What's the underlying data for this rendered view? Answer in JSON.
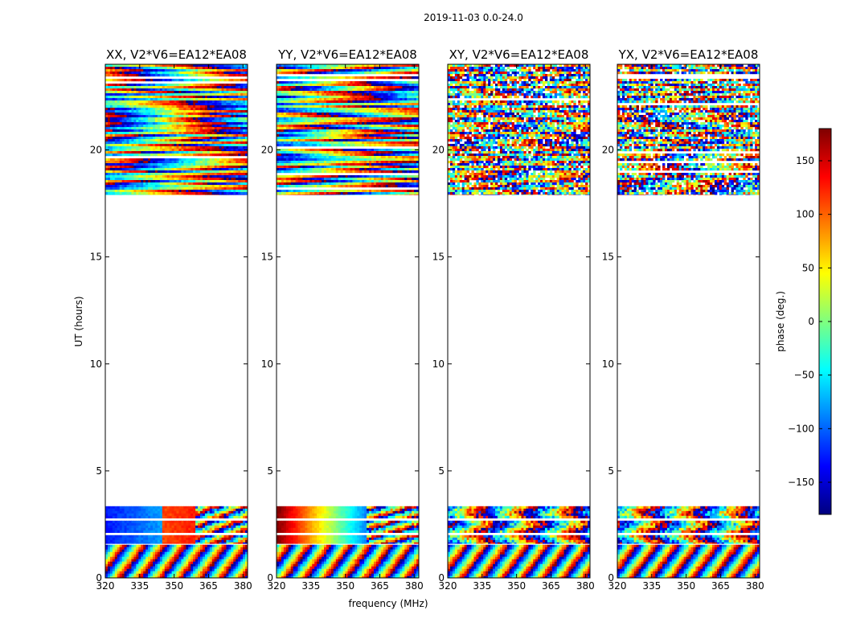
{
  "figure_title": "2019-11-03 0.0-24.0",
  "chart_data": {
    "type": "heatmap",
    "title": "2019-11-03 0.0-24.0",
    "xlabel": "frequency (MHz)",
    "ylabel": "UT (hours)",
    "xlim": [
      320,
      382
    ],
    "ylim": [
      0,
      24
    ],
    "x_ticks": [
      320,
      335,
      350,
      365,
      380
    ],
    "y_ticks": [
      0,
      5,
      10,
      15,
      20
    ],
    "colorbar": {
      "label": "phase (deg.)",
      "range": [
        -180,
        180
      ],
      "ticks": [
        150,
        100,
        50,
        0,
        -50,
        -100,
        -150
      ],
      "tick_labels": [
        "150",
        "100",
        "50",
        "0",
        "−50",
        "−100",
        "−150"
      ],
      "colormap": "jet",
      "colors": [
        "#00007f",
        "#0000ff",
        "#007fff",
        "#00ffff",
        "#7fff7f",
        "#ffff00",
        "#ff7f00",
        "#ff0000",
        "#7f0000"
      ]
    },
    "data_time_ranges_hours": [
      [
        0.0,
        1.55
      ],
      [
        1.6,
        3.35
      ],
      [
        17.9,
        24.0
      ]
    ],
    "panels": [
      {
        "title": "XX, V2*V6=EA12*EA08",
        "polarization": "XX"
      },
      {
        "title": "YY, V2*V6=EA12*EA08",
        "polarization": "YY"
      },
      {
        "title": "XY, V2*V6=EA12*EA08",
        "polarization": "XY"
      },
      {
        "title": "YX, V2*V6=EA12*EA08",
        "polarization": "YX"
      }
    ]
  }
}
